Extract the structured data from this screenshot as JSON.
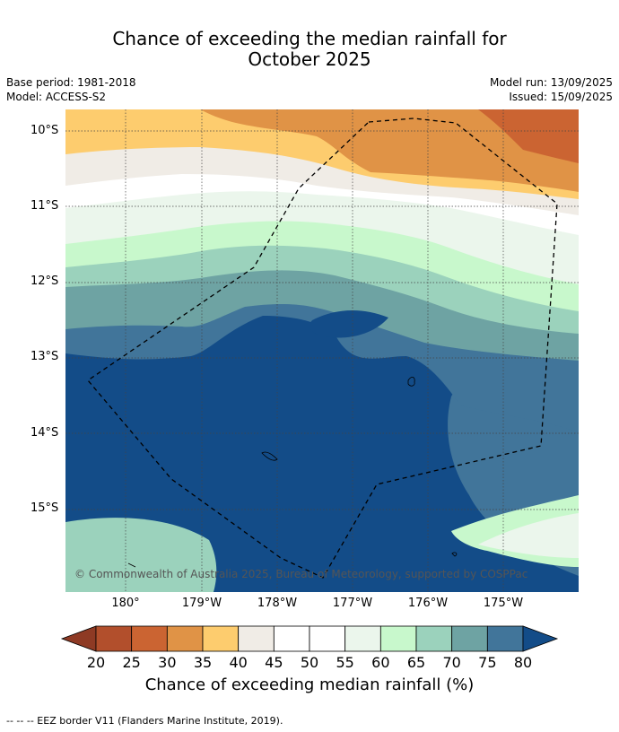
{
  "title_line1": "Chance of exceeding the median rainfall for",
  "title_line2": "October 2025",
  "base_period": "Base period: 1981-2018",
  "model": "Model: ACCESS-S2",
  "model_run": "Model run: 13/09/2025",
  "issued": "Issued: 15/09/2025",
  "lat_labels": [
    "10°S",
    "11°S",
    "12°S",
    "13°S",
    "14°S",
    "15°S"
  ],
  "lon_labels": [
    "180°",
    "179°W",
    "178°W",
    "177°W",
    "176°W",
    "175°W"
  ],
  "copyright": "© Commonwealth of Australia 2025, Bureau of Meteorology, supported by COSPPac",
  "colorbar": {
    "ticks": [
      "20",
      "25",
      "30",
      "35",
      "40",
      "45",
      "50",
      "55",
      "60",
      "65",
      "70",
      "75",
      "80"
    ],
    "label": "Chance of exceeding median rainfall (%)",
    "colors": [
      "#8e3a24",
      "#b24f2c",
      "#cb6432",
      "#e09346",
      "#fdcc6e",
      "#f0ece6",
      "#ffffff",
      "#ffffff",
      "#ebf6ec",
      "#c8f8cc",
      "#9bd2bc",
      "#6ea3a3",
      "#41759a",
      "#134c88"
    ]
  },
  "footnote": "--  --  -- EEZ border V11 (Flanders Marine Institute, 2019)."
}
